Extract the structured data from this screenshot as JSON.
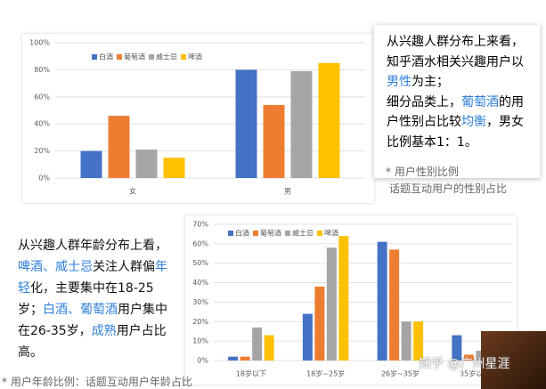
{
  "chart_data": [
    {
      "type": "bar",
      "categories": [
        "女",
        "男"
      ],
      "series": [
        {
          "name": "白酒",
          "color": "#4472c4",
          "values": [
            20,
            80
          ]
        },
        {
          "name": "葡萄酒",
          "color": "#ed7d31",
          "values": [
            46,
            54
          ]
        },
        {
          "name": "威士忌",
          "color": "#a5a5a5",
          "values": [
            21,
            79
          ]
        },
        {
          "name": "啤酒",
          "color": "#ffc000",
          "values": [
            15,
            85
          ]
        }
      ],
      "ylim": [
        0,
        100
      ],
      "yticks": [
        {
          "value": 0,
          "label": "0%"
        },
        {
          "value": 20,
          "label": "20%"
        },
        {
          "value": 40,
          "label": "40%"
        },
        {
          "value": 60,
          "label": "60%"
        },
        {
          "value": 80,
          "label": "80%"
        },
        {
          "value": 100,
          "label": "100%"
        }
      ],
      "grid": true,
      "legend": "top-left"
    },
    {
      "type": "bar",
      "categories": [
        "18岁以下",
        "18岁~25岁",
        "26岁~35岁",
        "35岁以上"
      ],
      "series": [
        {
          "name": "白酒",
          "color": "#4472c4",
          "values": [
            2,
            24,
            61,
            13
          ]
        },
        {
          "name": "葡萄酒",
          "color": "#ed7d31",
          "values": [
            2,
            38,
            57,
            3
          ]
        },
        {
          "name": "威士忌",
          "color": "#a5a5a5",
          "values": [
            17,
            58,
            20,
            5
          ]
        },
        {
          "name": "啤酒",
          "color": "#ffc000",
          "values": [
            13,
            64,
            20,
            4
          ]
        }
      ],
      "ylim": [
        0,
        70
      ],
      "yticks": [
        {
          "value": 0,
          "label": "0%"
        },
        {
          "value": 10,
          "label": "10%"
        },
        {
          "value": 20,
          "label": "20%"
        },
        {
          "value": 30,
          "label": "30%"
        },
        {
          "value": 40,
          "label": "40%"
        },
        {
          "value": 50,
          "label": "50%"
        },
        {
          "value": 60,
          "label": "60%"
        },
        {
          "value": 70,
          "label": "70%"
        }
      ],
      "grid": true,
      "legend": "top-left"
    }
  ],
  "gender_text": {
    "paragraphs": [
      [
        {
          "text": "从兴趣人群分布上来看，知乎酒水相关兴趣用户以"
        },
        {
          "text": "男性",
          "em": true
        },
        {
          "text": "为主；"
        }
      ],
      [
        {
          "text": "细分品类上，"
        },
        {
          "text": "葡萄酒",
          "em": true
        },
        {
          "text": "的用户性别占比较"
        },
        {
          "text": "均衡",
          "em": true
        },
        {
          "text": "，男女比例基本1：1。"
        }
      ]
    ],
    "notes": [
      "* 用户性别比例",
      "话题互动用户的性别占比"
    ]
  },
  "age_text": {
    "paragraphs": [
      [
        {
          "text": "从兴趣人群年龄分布上看，"
        },
        {
          "text": "啤酒、威士忌",
          "em": true
        },
        {
          "text": "关注人群偏"
        },
        {
          "text": "年轻",
          "em": true
        },
        {
          "text": "化，主要集中在18-25岁；"
        },
        {
          "text": "白酒、葡萄酒",
          "em": true
        },
        {
          "text": "用户集中在26-35岁，"
        },
        {
          "text": "成熟",
          "em": true
        },
        {
          "text": "用户占比高。"
        }
      ]
    ],
    "note": "* 用户年龄比例：话题互动用户年龄占比"
  },
  "watermark": "知乎 @广州星涯"
}
